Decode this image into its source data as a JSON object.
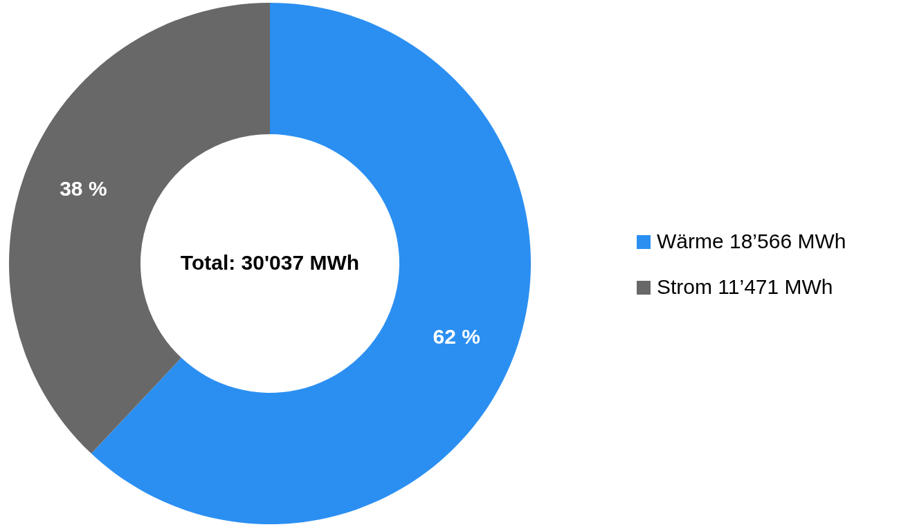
{
  "chart_data": {
    "type": "donut",
    "categories": [
      "Wärme  18’566  MWh",
      "Strom  11’471  MWh"
    ],
    "values": [
      62,
      38
    ],
    "value_labels": [
      "62 %",
      "38 %"
    ],
    "colors": [
      "#2b8ff2",
      "#686868"
    ],
    "annotations": [
      "Total: 30'037 MWh"
    ],
    "legend": "right"
  }
}
